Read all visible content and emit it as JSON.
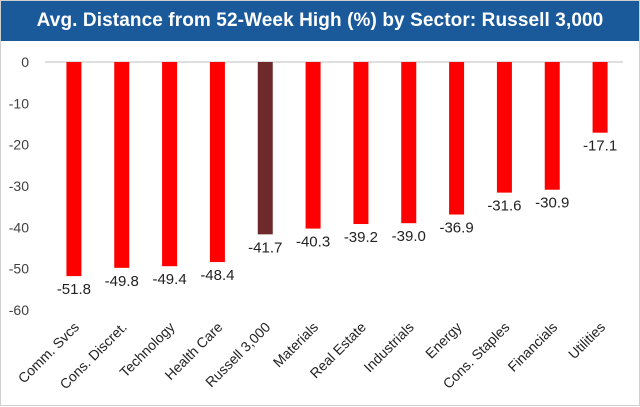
{
  "chart_data": {
    "type": "bar",
    "title": "Avg. Distance from 52-Week High (%) by Sector: Russell 3,000",
    "xlabel": "",
    "ylabel": "",
    "ylim": [
      -60,
      0
    ],
    "yticks": [
      0,
      -10,
      -20,
      -30,
      -40,
      -50,
      -60
    ],
    "grid": false,
    "categories": [
      "Comm. Svcs",
      "Cons. Discret.",
      "Technology",
      "Health Care",
      "Russell 3,000",
      "Materials",
      "Real Estate",
      "Industrials",
      "Energy",
      "Cons. Staples",
      "Financials",
      "Utilities"
    ],
    "values": [
      -51.8,
      -49.8,
      -49.4,
      -48.4,
      -41.7,
      -40.3,
      -39.2,
      -39.0,
      -36.9,
      -31.6,
      -30.9,
      -17.1
    ],
    "value_labels": [
      "-51.8",
      "-49.8",
      "-49.4",
      "-48.4",
      "-41.7",
      "-40.3",
      "-39.2",
      "-39.0",
      "-36.9",
      "-31.6",
      "-30.9",
      "-17.1"
    ],
    "colors": {
      "default": "#ff0000",
      "highlight": "#6e2a2a",
      "title_background": "#1a5a9b",
      "title_text": "#ffffff"
    },
    "highlight_category": "Russell 3,000"
  }
}
